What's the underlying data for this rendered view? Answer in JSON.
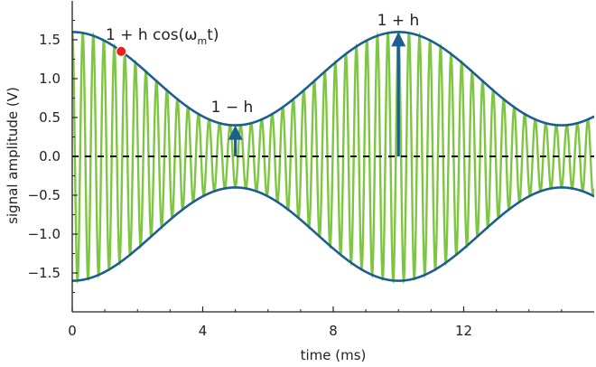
{
  "chart_data": {
    "type": "line",
    "title": "",
    "xlabel": "time (ms)",
    "ylabel": "signal amplitude (V)",
    "xlim": [
      0,
      16
    ],
    "ylim": [
      -2,
      2
    ],
    "x_ticks": [
      0,
      4,
      8,
      12
    ],
    "x_tick_labels": [
      "0",
      "4",
      "8",
      "12"
    ],
    "y_ticks": [
      1.5,
      1.0,
      0.5,
      0.0,
      -0.5,
      -1.0,
      -1.5
    ],
    "y_tick_labels": [
      "1.5",
      "1.0",
      "0.5",
      "0.0",
      "−0.5",
      "−1.0",
      "−1.5"
    ],
    "grid": false,
    "legend": "none",
    "model": {
      "carrier_amplitude": 1.0,
      "modulation_depth_h": 0.6,
      "modulation_period_ms": 10,
      "carrier_frequency_khz": 3.1
    },
    "series": [
      {
        "role": "modulated-signal",
        "color": "#7DC642",
        "x": [
          0,
          0.16,
          0.32,
          0.48,
          0.65,
          0.81,
          0.97,
          1.13,
          1.29,
          1.45,
          1.61
        ],
        "y": [
          1.6,
          -1.59,
          1.57,
          -1.55,
          1.51,
          -1.47,
          1.42,
          -1.36,
          1.3,
          -1.24,
          1.17
        ]
      },
      {
        "role": "upper-envelope",
        "color": "#1C5F8E",
        "x": [
          0,
          1,
          2,
          3,
          4,
          5,
          6,
          7,
          8,
          9,
          10,
          11,
          12,
          13,
          14,
          15,
          16
        ],
        "y": [
          1.6,
          1.49,
          1.19,
          0.82,
          0.51,
          0.4,
          0.51,
          0.82,
          1.19,
          1.49,
          1.6,
          1.49,
          1.19,
          0.82,
          0.51,
          0.4,
          0.51
        ]
      },
      {
        "role": "lower-envelope",
        "color": "#1C5F8E",
        "x": [
          0,
          1,
          2,
          3,
          4,
          5,
          6,
          7,
          8,
          9,
          10,
          11,
          12,
          13,
          14,
          15,
          16
        ],
        "y": [
          -1.6,
          -1.49,
          -1.19,
          -0.82,
          -0.51,
          -0.4,
          -0.51,
          -0.82,
          -1.19,
          -1.49,
          -1.6,
          -1.49,
          -1.19,
          -0.82,
          -0.51,
          -0.4,
          -0.51
        ]
      },
      {
        "role": "zero-line",
        "color": "#111111",
        "x": [
          0,
          16
        ],
        "y": [
          0,
          0
        ]
      }
    ],
    "annotations": [
      {
        "text_pre": "1 + h cos(ω",
        "sub": "m",
        "text_post": "t)",
        "marker": {
          "x": 1.5,
          "y": 1.35,
          "color": "#EE1C1C"
        }
      },
      {
        "text": "1 − h",
        "arrow": {
          "x": 5,
          "from": 0,
          "to": 0.4,
          "color": "#1C5F8E"
        }
      },
      {
        "text": "1 + h",
        "arrow": {
          "x": 10,
          "from": 0,
          "to": 1.6,
          "color": "#1C5F8E"
        }
      }
    ]
  }
}
